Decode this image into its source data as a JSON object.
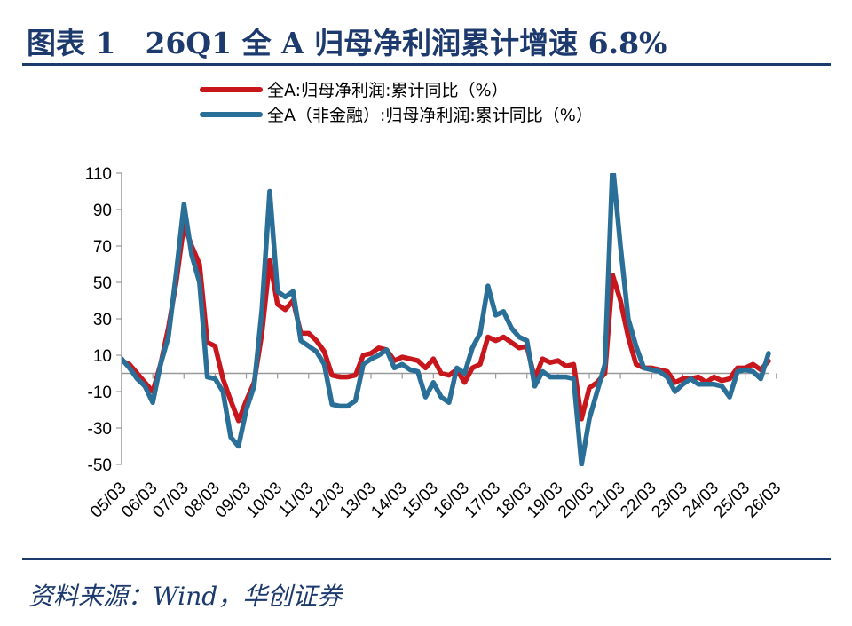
{
  "title": "图表 1　26Q1 全 A 归母净利润累计增速 6.8%",
  "source": "资料来源：Wind，华创证券",
  "colors": {
    "series_a": "#c8161d",
    "series_b": "#2a6f97",
    "frame": "#1d3a6e",
    "zero_line": "#999999"
  },
  "chart_data": {
    "type": "line",
    "title": "",
    "xlabel": "",
    "ylabel": "",
    "ylim": [
      -50,
      110
    ],
    "yticks": [
      110,
      90,
      70,
      50,
      30,
      10,
      -10,
      -30,
      -50
    ],
    "grid": false,
    "legend_position": "top",
    "x_tick_labels": [
      "05/03",
      "06/03",
      "07/03",
      "08/03",
      "09/03",
      "10/03",
      "11/03",
      "12/03",
      "13/03",
      "14/03",
      "15/03",
      "16/03",
      "17/03",
      "18/03",
      "19/03",
      "20/03",
      "21/03",
      "22/03",
      "23/03",
      "24/03",
      "25/03",
      "26/03"
    ],
    "series": [
      {
        "name": "全A:归母净利润:累计同比（%）",
        "color": "#c8161d",
        "points": [
          [
            2005.25,
            7
          ],
          [
            2005.5,
            5
          ],
          [
            2005.75,
            0
          ],
          [
            2006,
            -5
          ],
          [
            2006.25,
            -10
          ],
          [
            2006.5,
            5
          ],
          [
            2006.75,
            25
          ],
          [
            2007,
            50
          ],
          [
            2007.25,
            82
          ],
          [
            2007.5,
            70
          ],
          [
            2007.75,
            60
          ],
          [
            2008,
            17
          ],
          [
            2008.25,
            15
          ],
          [
            2008.5,
            -3
          ],
          [
            2008.75,
            -15
          ],
          [
            2009,
            -26
          ],
          [
            2009.25,
            -15
          ],
          [
            2009.5,
            -5
          ],
          [
            2009.75,
            22
          ],
          [
            2010,
            62
          ],
          [
            2010.25,
            38
          ],
          [
            2010.5,
            35
          ],
          [
            2010.75,
            40
          ],
          [
            2011,
            22
          ],
          [
            2011.25,
            22
          ],
          [
            2011.5,
            18
          ],
          [
            2011.75,
            12
          ],
          [
            2012,
            -1
          ],
          [
            2012.25,
            -2
          ],
          [
            2012.5,
            -2
          ],
          [
            2012.75,
            -1
          ],
          [
            2013,
            10
          ],
          [
            2013.25,
            11
          ],
          [
            2013.5,
            14
          ],
          [
            2013.75,
            13
          ],
          [
            2014,
            7
          ],
          [
            2014.25,
            9
          ],
          [
            2014.5,
            8
          ],
          [
            2014.75,
            7
          ],
          [
            2015,
            3
          ],
          [
            2015.25,
            8
          ],
          [
            2015.5,
            0
          ],
          [
            2015.75,
            -1
          ],
          [
            2016,
            2
          ],
          [
            2016.25,
            -5
          ],
          [
            2016.5,
            3
          ],
          [
            2016.75,
            5
          ],
          [
            2017,
            20
          ],
          [
            2017.25,
            18
          ],
          [
            2017.5,
            20
          ],
          [
            2017.75,
            17
          ],
          [
            2018,
            14
          ],
          [
            2018.25,
            15
          ],
          [
            2018.5,
            -3
          ],
          [
            2018.75,
            8
          ],
          [
            2019,
            6
          ],
          [
            2019.25,
            7
          ],
          [
            2019.5,
            4
          ],
          [
            2019.75,
            5
          ],
          [
            2020,
            -25
          ],
          [
            2020.25,
            -8
          ],
          [
            2020.5,
            -5
          ],
          [
            2020.75,
            0
          ],
          [
            2021,
            54
          ],
          [
            2021.25,
            40
          ],
          [
            2021.5,
            20
          ],
          [
            2021.75,
            5
          ],
          [
            2022,
            3
          ],
          [
            2022.25,
            3
          ],
          [
            2022.5,
            2
          ],
          [
            2022.75,
            1
          ],
          [
            2023,
            -5
          ],
          [
            2023.25,
            -3
          ],
          [
            2023.5,
            -3
          ],
          [
            2023.75,
            -2
          ],
          [
            2024,
            -5
          ],
          [
            2024.25,
            -2
          ],
          [
            2024.5,
            -4
          ],
          [
            2024.75,
            -3
          ],
          [
            2025,
            3
          ],
          [
            2025.25,
            3
          ],
          [
            2025.5,
            5
          ],
          [
            2025.75,
            2
          ],
          [
            2026,
            6.8
          ]
        ]
      },
      {
        "name": "全A（非金融）:归母净利润:累计同比（%）",
        "color": "#2a6f97",
        "points": [
          [
            2005.25,
            8
          ],
          [
            2005.5,
            3
          ],
          [
            2005.75,
            -3
          ],
          [
            2006,
            -7
          ],
          [
            2006.25,
            -16
          ],
          [
            2006.5,
            5
          ],
          [
            2006.75,
            20
          ],
          [
            2007,
            55
          ],
          [
            2007.25,
            93
          ],
          [
            2007.5,
            65
          ],
          [
            2007.75,
            50
          ],
          [
            2008,
            -2
          ],
          [
            2008.25,
            -3
          ],
          [
            2008.5,
            -10
          ],
          [
            2008.75,
            -35
          ],
          [
            2009,
            -40
          ],
          [
            2009.25,
            -20
          ],
          [
            2009.5,
            -7
          ],
          [
            2009.75,
            35
          ],
          [
            2010,
            100
          ],
          [
            2010.25,
            45
          ],
          [
            2010.5,
            42
          ],
          [
            2010.75,
            45
          ],
          [
            2011,
            18
          ],
          [
            2011.25,
            15
          ],
          [
            2011.5,
            12
          ],
          [
            2011.75,
            5
          ],
          [
            2012,
            -17
          ],
          [
            2012.25,
            -18
          ],
          [
            2012.5,
            -18
          ],
          [
            2012.75,
            -15
          ],
          [
            2013,
            5
          ],
          [
            2013.25,
            8
          ],
          [
            2013.5,
            10
          ],
          [
            2013.75,
            13
          ],
          [
            2014,
            3
          ],
          [
            2014.25,
            5
          ],
          [
            2014.5,
            2
          ],
          [
            2014.75,
            1
          ],
          [
            2015,
            -13
          ],
          [
            2015.25,
            -5
          ],
          [
            2015.5,
            -13
          ],
          [
            2015.75,
            -16
          ],
          [
            2016,
            3
          ],
          [
            2016.25,
            0
          ],
          [
            2016.5,
            14
          ],
          [
            2016.75,
            22
          ],
          [
            2017,
            48
          ],
          [
            2017.25,
            32
          ],
          [
            2017.5,
            34
          ],
          [
            2017.75,
            25
          ],
          [
            2018,
            20
          ],
          [
            2018.25,
            18
          ],
          [
            2018.5,
            -7
          ],
          [
            2018.75,
            1
          ],
          [
            2019,
            -2
          ],
          [
            2019.25,
            -2
          ],
          [
            2019.5,
            -2
          ],
          [
            2019.75,
            -3
          ],
          [
            2020,
            -50
          ],
          [
            2020.25,
            -25
          ],
          [
            2020.5,
            -10
          ],
          [
            2020.75,
            5
          ],
          [
            2021,
            115
          ],
          [
            2021.25,
            70
          ],
          [
            2021.5,
            30
          ],
          [
            2021.75,
            15
          ],
          [
            2022,
            3
          ],
          [
            2022.25,
            2
          ],
          [
            2022.5,
            1
          ],
          [
            2022.75,
            -2
          ],
          [
            2023,
            -10
          ],
          [
            2023.25,
            -6
          ],
          [
            2023.5,
            -3
          ],
          [
            2023.75,
            -6
          ],
          [
            2024,
            -6
          ],
          [
            2024.25,
            -6
          ],
          [
            2024.5,
            -7
          ],
          [
            2024.75,
            -13
          ],
          [
            2025,
            1
          ],
          [
            2025.25,
            2
          ],
          [
            2025.5,
            1
          ],
          [
            2025.75,
            -3
          ],
          [
            2026,
            11
          ]
        ]
      }
    ]
  }
}
